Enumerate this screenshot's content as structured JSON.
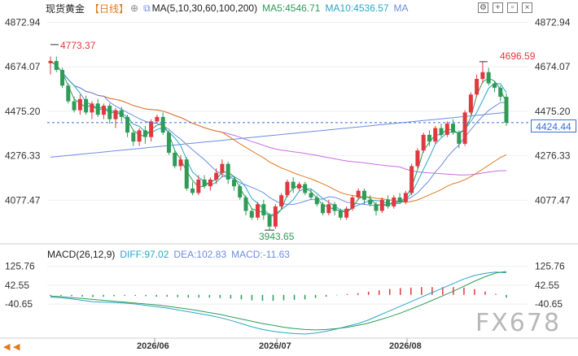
{
  "header": {
    "symbol": "现货黄金",
    "period": "【日线】",
    "ma_params": "MA(5,10,30,60,100,200)",
    "ma5": "MA5:4546.71",
    "ma10": "MA10:4536.57",
    "ma_extra": "MA"
  },
  "macd_header": {
    "params": "MACD(26,12,9)",
    "diff": "DIFF:97.02",
    "dea": "DEA:102.83",
    "macd": "MACD:-11.63"
  },
  "icons": [
    "chart-settings-icon",
    "add-indicator-icon",
    "fullscreen-icon",
    "close-icon"
  ],
  "colors": {
    "up": "#e0383e",
    "down": "#2e9b57",
    "ma5": "#2e9b57",
    "ma10": "#2aa6c9",
    "ma30": "#6b8de0",
    "ma60": "#c86fe0",
    "ma100": "#e07a20",
    "ma200": "#d068c8",
    "price_line": "#3a6fd8"
  },
  "chart_data": [
    {
      "type": "candlestick",
      "title": "现货黄金 【日线】",
      "y_axis_ticks": [
        "4872.94",
        "4674.07",
        "4475.20",
        "4276.33",
        "4077.47"
      ],
      "y_range": [
        3890,
        4900
      ],
      "x_ticks": [
        "2026/06",
        "2026/07",
        "2026/08"
      ],
      "current_price": "4424.44",
      "annotations": {
        "high": "4773.37",
        "low": "3943.65",
        "recent_high": "4696.59"
      },
      "candles": [
        [
          4690,
          4700,
          4640,
          4720
        ],
        [
          4700,
          4660,
          4650,
          4720
        ],
        [
          4660,
          4590,
          4580,
          4670
        ],
        [
          4590,
          4520,
          4510,
          4600
        ],
        [
          4520,
          4480,
          4470,
          4540
        ],
        [
          4480,
          4530,
          4460,
          4550
        ],
        [
          4530,
          4470,
          4460,
          4545
        ],
        [
          4470,
          4510,
          4440,
          4520
        ],
        [
          4510,
          4460,
          4450,
          4530
        ],
        [
          4460,
          4500,
          4440,
          4510
        ],
        [
          4500,
          4440,
          4420,
          4510
        ],
        [
          4440,
          4480,
          4400,
          4490
        ],
        [
          4480,
          4450,
          4430,
          4495
        ],
        [
          4450,
          4380,
          4360,
          4460
        ],
        [
          4380,
          4340,
          4320,
          4390
        ],
        [
          4340,
          4390,
          4320,
          4400
        ],
        [
          4390,
          4360,
          4330,
          4410
        ],
        [
          4360,
          4430,
          4340,
          4440
        ],
        [
          4430,
          4450,
          4420,
          4460
        ],
        [
          4450,
          4380,
          4370,
          4470
        ],
        [
          4380,
          4290,
          4280,
          4390
        ],
        [
          4290,
          4230,
          4220,
          4300
        ],
        [
          4230,
          4260,
          4210,
          4280
        ],
        [
          4260,
          4130,
          4120,
          4270
        ],
        [
          4130,
          4110,
          4100,
          4160
        ],
        [
          4110,
          4170,
          4100,
          4190
        ],
        [
          4170,
          4140,
          4130,
          4190
        ],
        [
          4140,
          4170,
          4120,
          4180
        ],
        [
          4170,
          4200,
          4150,
          4220
        ],
        [
          4200,
          4240,
          4180,
          4260
        ],
        [
          4240,
          4170,
          4150,
          4250
        ],
        [
          4170,
          4140,
          4120,
          4180
        ],
        [
          4140,
          4090,
          4080,
          4150
        ],
        [
          4090,
          4030,
          4010,
          4100
        ],
        [
          4030,
          4000,
          3990,
          4040
        ],
        [
          4000,
          4060,
          3990,
          4070
        ],
        [
          4060,
          4010,
          3990,
          4080
        ],
        [
          4010,
          3960,
          3944,
          4020
        ],
        [
          3960,
          4050,
          3950,
          4060
        ],
        [
          4050,
          4100,
          4040,
          4110
        ],
        [
          4100,
          4160,
          4090,
          4170
        ],
        [
          4160,
          4130,
          4110,
          4180
        ],
        [
          4130,
          4150,
          4120,
          4160
        ],
        [
          4150,
          4110,
          4100,
          4160
        ],
        [
          4110,
          4090,
          4080,
          4130
        ],
        [
          4090,
          4060,
          4050,
          4100
        ],
        [
          4060,
          4020,
          4010,
          4070
        ],
        [
          4020,
          4060,
          4010,
          4080
        ],
        [
          4060,
          4030,
          4010,
          4070
        ],
        [
          4030,
          4000,
          3990,
          4040
        ],
        [
          4000,
          4040,
          3990,
          4050
        ],
        [
          4040,
          4090,
          4030,
          4100
        ],
        [
          4090,
          4120,
          4080,
          4130
        ],
        [
          4120,
          4080,
          4060,
          4130
        ],
        [
          4080,
          4060,
          4050,
          4100
        ],
        [
          4060,
          4030,
          4010,
          4070
        ],
        [
          4030,
          4080,
          4020,
          4090
        ],
        [
          4080,
          4050,
          4040,
          4100
        ],
        [
          4050,
          4090,
          4040,
          4100
        ],
        [
          4090,
          4070,
          4060,
          4110
        ],
        [
          4070,
          4110,
          4060,
          4120
        ],
        [
          4110,
          4230,
          4100,
          4240
        ],
        [
          4230,
          4300,
          4220,
          4310
        ],
        [
          4300,
          4370,
          4290,
          4380
        ],
        [
          4370,
          4340,
          4320,
          4390
        ],
        [
          4340,
          4400,
          4330,
          4410
        ],
        [
          4400,
          4370,
          4360,
          4420
        ],
        [
          4370,
          4420,
          4360,
          4430
        ],
        [
          4420,
          4380,
          4370,
          4440
        ],
        [
          4380,
          4330,
          4310,
          4390
        ],
        [
          4330,
          4470,
          4320,
          4480
        ],
        [
          4470,
          4550,
          4460,
          4560
        ],
        [
          4550,
          4620,
          4540,
          4640
        ],
        [
          4620,
          4650,
          4600,
          4697
        ],
        [
          4650,
          4600,
          4590,
          4670
        ],
        [
          4600,
          4580,
          4560,
          4610
        ],
        [
          4580,
          4540,
          4520,
          4590
        ],
        [
          4540,
          4424,
          4410,
          4555
        ]
      ],
      "macd": {
        "diff": [
          -10,
          -12,
          -18,
          -24,
          -30,
          -32,
          -34,
          -36,
          -40,
          -46,
          -52,
          -58,
          -66,
          -74,
          -82,
          -90,
          -100,
          -112,
          -126,
          -140,
          -152,
          -160,
          -166,
          -170,
          -172,
          -168,
          -160,
          -150,
          -138,
          -126,
          -110,
          -90,
          -70,
          -50,
          -30,
          -10,
          10,
          30,
          50,
          70,
          85,
          95,
          100,
          97
        ],
        "dea": [
          -5,
          -8,
          -12,
          -16,
          -20,
          -24,
          -28,
          -32,
          -36,
          -40,
          -44,
          -50,
          -56,
          -62,
          -70,
          -78,
          -86,
          -96,
          -106,
          -116,
          -126,
          -134,
          -142,
          -148,
          -152,
          -154,
          -152,
          -148,
          -142,
          -134,
          -124,
          -110,
          -96,
          -80,
          -62,
          -44,
          -24,
          -4,
          16,
          38,
          60,
          80,
          96,
          103
        ],
        "hist": [
          -5,
          -4,
          -6,
          -8,
          -10,
          -8,
          -6,
          -4,
          -4,
          -6,
          -8,
          -8,
          -10,
          -12,
          -12,
          -12,
          -14,
          -16,
          -20,
          -24,
          -26,
          -26,
          -24,
          -22,
          -20,
          -14,
          -8,
          -2,
          4,
          8,
          14,
          20,
          26,
          30,
          32,
          34,
          34,
          34,
          34,
          32,
          25,
          15,
          4,
          -12
        ]
      },
      "macd_ticks": [
        "125.76",
        "42.55",
        "-40.65"
      ],
      "macd_range": [
        -190,
        160
      ]
    }
  ],
  "watermark": "FX678"
}
